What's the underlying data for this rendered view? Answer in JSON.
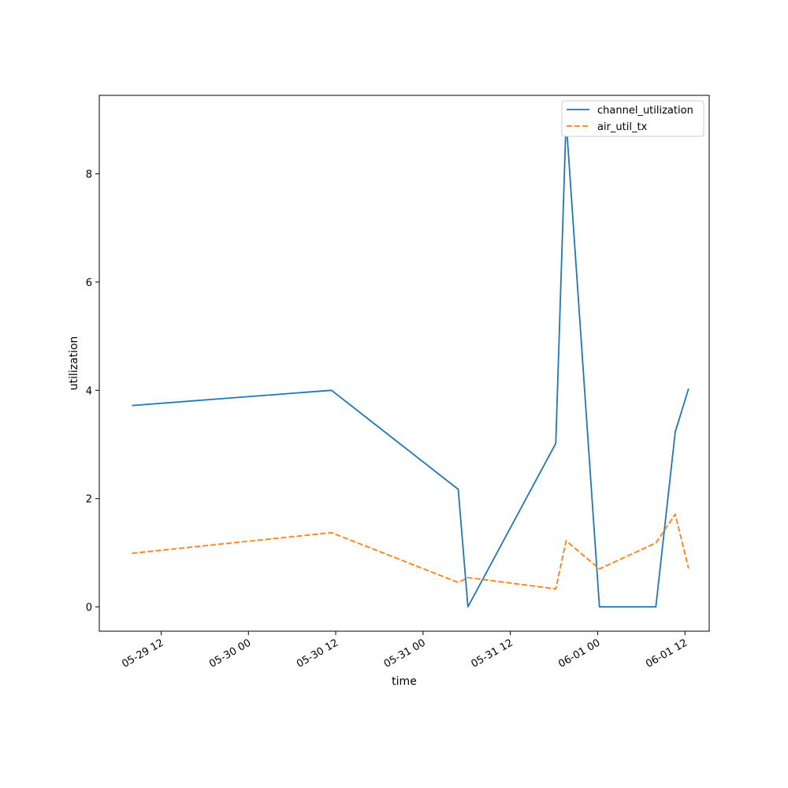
{
  "chart_data": {
    "type": "line",
    "xlabel": "time",
    "ylabel": "utilization",
    "x_tick_labels": [
      "05-29 12",
      "05-30 00",
      "05-30 12",
      "05-31 00",
      "05-31 12",
      "06-01 00",
      "06-01 12"
    ],
    "x_ticks": [
      "2024-05-29 12:00",
      "2024-05-30 00:00",
      "2024-05-30 12:00",
      "2024-05-31 00:00",
      "2024-05-31 12:00",
      "2024-06-01 00:00",
      "2024-06-01 12:00"
    ],
    "x_range": [
      "2024-05-29 03:30",
      "2024-06-01 15:20"
    ],
    "y_ticks": [
      0,
      2,
      4,
      6,
      8
    ],
    "ylim": [
      -0.45,
      9.45
    ],
    "grid": false,
    "legend_position": "top-right",
    "x": [
      "2024-05-29 08:00",
      "2024-05-30 11:25",
      "2024-05-31 04:50",
      "2024-05-31 06:10",
      "2024-05-31 18:15",
      "2024-05-31 19:40",
      "2024-06-01 00:15",
      "2024-06-01 08:00",
      "2024-06-01 10:40",
      "2024-06-01 12:30"
    ],
    "series": [
      {
        "name": "channel_utilization",
        "color": "#1f77b4",
        "dash": "solid",
        "values": [
          3.72,
          4.0,
          2.17,
          0.0,
          3.02,
          9.0,
          0.0,
          0.0,
          3.23,
          4.03
        ]
      },
      {
        "name": "air_util_tx",
        "color": "#ff7f0e",
        "dash": "dashed",
        "values": [
          0.99,
          1.37,
          0.45,
          0.54,
          0.33,
          1.22,
          0.7,
          1.18,
          1.71,
          0.71
        ]
      }
    ]
  }
}
